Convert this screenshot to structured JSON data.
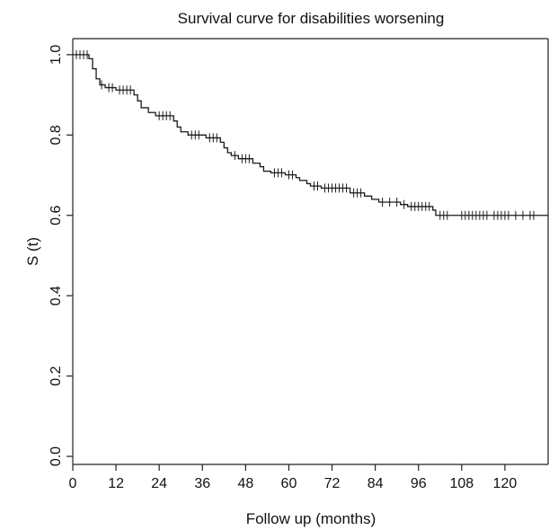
{
  "chart_data": {
    "type": "line",
    "step": true,
    "title": "Survival curve for disabilities worsening",
    "xlabel": "Follow up (months)",
    "ylabel": "S (t)",
    "xlim": [
      0,
      132
    ],
    "ylim": [
      -0.02,
      1.04
    ],
    "xticks": [
      0,
      12,
      24,
      36,
      48,
      60,
      72,
      84,
      96,
      108,
      120
    ],
    "xtick_labels": [
      "0",
      "12",
      "24",
      "36",
      "48",
      "60",
      "72",
      "84",
      "96",
      "108",
      "120"
    ],
    "yticks": [
      0.0,
      0.2,
      0.4,
      0.6,
      0.8,
      1.0
    ],
    "ytick_labels": [
      "0.0",
      "0.2",
      "0.4",
      "0.6",
      "0.8",
      "1.0"
    ],
    "grid": false,
    "series": [
      {
        "line_color": "#1a1a1a",
        "steps": [
          [
            0,
            1.0
          ],
          [
            4.5,
            0.99
          ],
          [
            5.5,
            0.965
          ],
          [
            6.5,
            0.94
          ],
          [
            7.5,
            0.925
          ],
          [
            9,
            0.918
          ],
          [
            12,
            0.912
          ],
          [
            17,
            0.9
          ],
          [
            18,
            0.885
          ],
          [
            19,
            0.868
          ],
          [
            21,
            0.856
          ],
          [
            23,
            0.848
          ],
          [
            28,
            0.835
          ],
          [
            29,
            0.82
          ],
          [
            30,
            0.808
          ],
          [
            32,
            0.8
          ],
          [
            37,
            0.793
          ],
          [
            41,
            0.782
          ],
          [
            42,
            0.768
          ],
          [
            43,
            0.756
          ],
          [
            44,
            0.749
          ],
          [
            46,
            0.741
          ],
          [
            50,
            0.73
          ],
          [
            52,
            0.721
          ],
          [
            53,
            0.71
          ],
          [
            55,
            0.706
          ],
          [
            59,
            0.701
          ],
          [
            62,
            0.694
          ],
          [
            63,
            0.687
          ],
          [
            65,
            0.679
          ],
          [
            66,
            0.673
          ],
          [
            69,
            0.668
          ],
          [
            77,
            0.656
          ],
          [
            81,
            0.648
          ],
          [
            83,
            0.64
          ],
          [
            85,
            0.633
          ],
          [
            91,
            0.627
          ],
          [
            93,
            0.622
          ],
          [
            100,
            0.613
          ],
          [
            100.8,
            0.6
          ]
        ],
        "end_x": 132,
        "censored": [
          1,
          2,
          3,
          4,
          8,
          10,
          11,
          13,
          14,
          15,
          16,
          24,
          25,
          26,
          27,
          33,
          34,
          35,
          38,
          39,
          40,
          45,
          47,
          48,
          49,
          56,
          57,
          58,
          60,
          61,
          67,
          68,
          70,
          71,
          72,
          73,
          74,
          75,
          76,
          78,
          79,
          80,
          86,
          88,
          90,
          92,
          94,
          95,
          96,
          97,
          98,
          99,
          102,
          103,
          104,
          108,
          109,
          110,
          111,
          112,
          113,
          114,
          115,
          117,
          118,
          119,
          120,
          121,
          123,
          125,
          127,
          128
        ]
      }
    ]
  }
}
